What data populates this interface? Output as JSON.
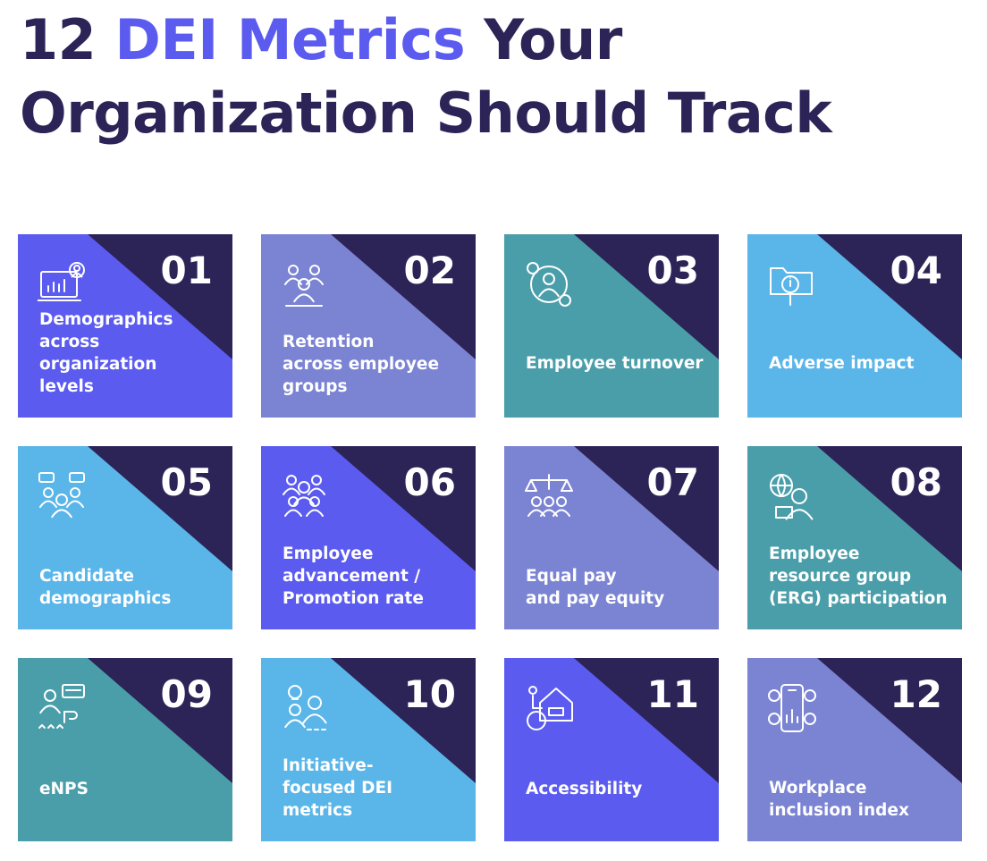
{
  "title": {
    "prefix": "12 ",
    "highlight": "DEI Metrics",
    "suffix": " Your",
    "line2": "Organization Should Track"
  },
  "colors": {
    "title": "#2c2357",
    "accent": "#5b5bf0",
    "corner": "#2c2357",
    "violet": "#5b5bf0",
    "lavender": "#7b83d3",
    "teal": "#4a9ea9",
    "sky": "#5ab5e8"
  },
  "cards": [
    {
      "number": "01",
      "label": "Demographics\nacross organization\nlevels",
      "color": "#5b5bf0",
      "icon": "laptop-chart-icon"
    },
    {
      "number": "02",
      "label": "Retention\nacross employee\ngroups",
      "color": "#7b83d3",
      "icon": "people-group-icon"
    },
    {
      "number": "03",
      "label": "Employee turnover",
      "color": "#4a9ea9",
      "icon": "person-cycle-icon"
    },
    {
      "number": "04",
      "label": "Adverse impact",
      "color": "#5ab5e8",
      "icon": "folder-magnifier-icon"
    },
    {
      "number": "05",
      "label": "Candidate\ndemographics",
      "color": "#5ab5e8",
      "icon": "candidates-chat-icon"
    },
    {
      "number": "06",
      "label": "Employee\nadvancement /\nPromotion rate",
      "color": "#5b5bf0",
      "icon": "team-icon"
    },
    {
      "number": "07",
      "label": "Equal pay\nand pay equity",
      "color": "#7b83d3",
      "icon": "scales-people-icon"
    },
    {
      "number": "08",
      "label": "Employee\nresource group\n(ERG) participation",
      "color": "#4a9ea9",
      "icon": "globe-headset-icon"
    },
    {
      "number": "09",
      "label": "eNPS",
      "color": "#4a9ea9",
      "icon": "rating-feedback-icon"
    },
    {
      "number": "10",
      "label": "Initiative-\nfocused DEI\nmetrics",
      "color": "#5ab5e8",
      "icon": "idea-people-icon"
    },
    {
      "number": "11",
      "label": "Accessibility",
      "color": "#5b5bf0",
      "icon": "wheelchair-house-icon"
    },
    {
      "number": "12",
      "label": "Workplace\ninclusion index",
      "color": "#7b83d3",
      "icon": "phone-dashboard-icon"
    }
  ]
}
